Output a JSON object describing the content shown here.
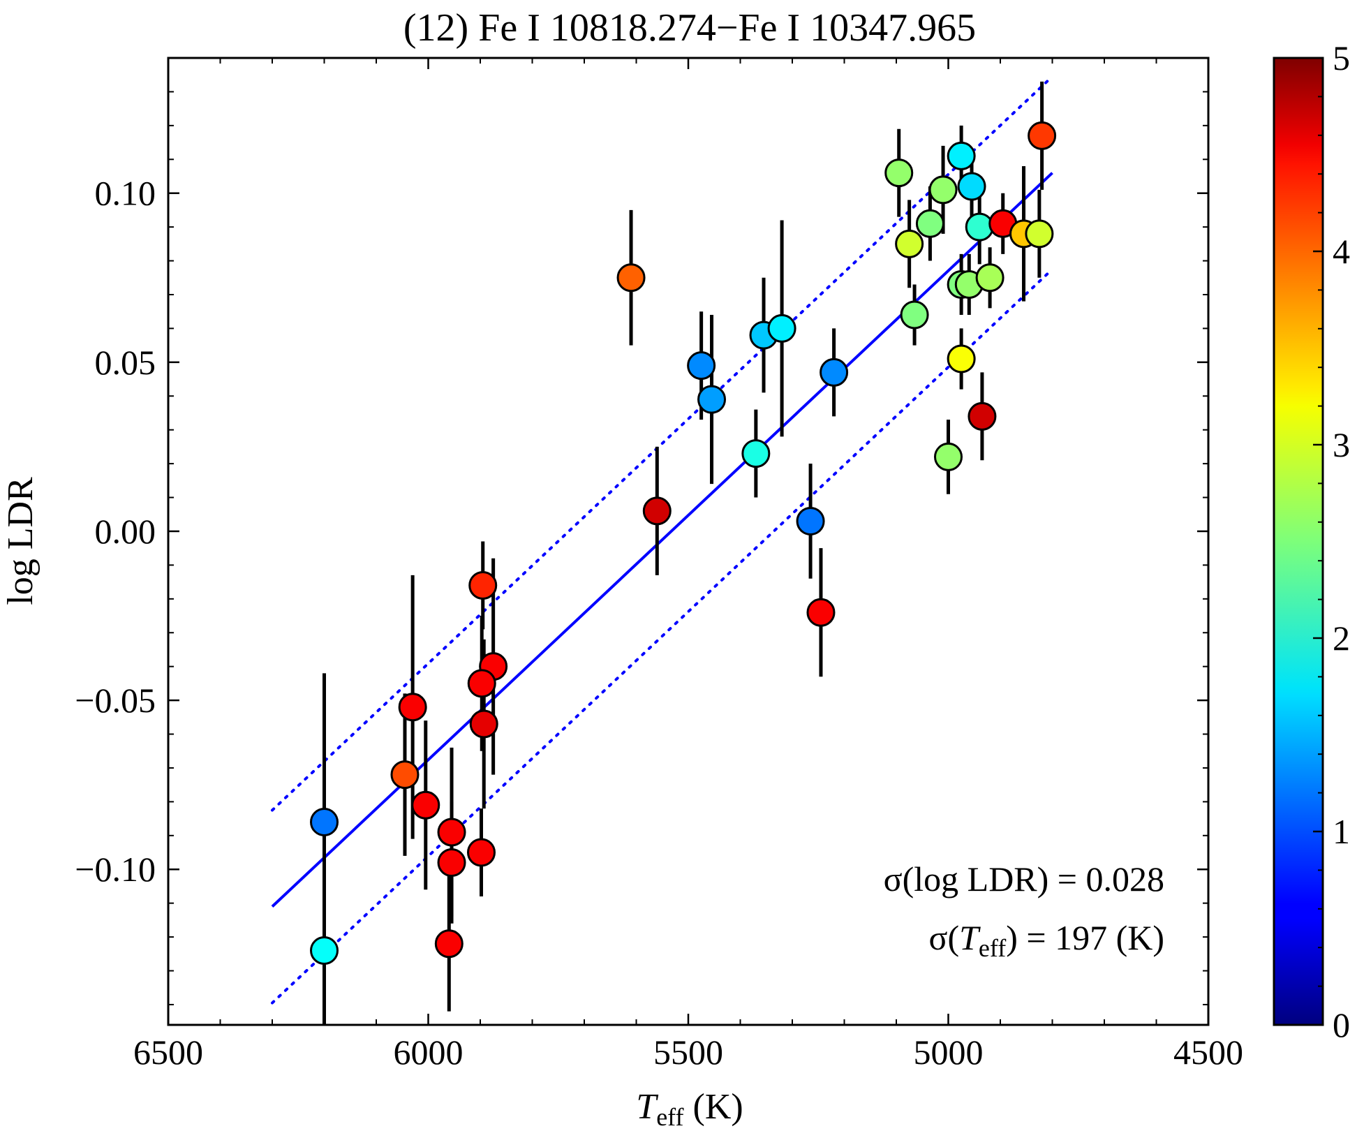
{
  "chart_data": {
    "type": "scatter",
    "title": "(12) Fe I 10818.274−Fe I 10347.965",
    "xlabel": {
      "main": "T",
      "sub": "eff",
      "suffix": " (K)"
    },
    "ylabel": "log LDR",
    "xlim": [
      6500,
      4500
    ],
    "ylim": [
      -0.146,
      0.14
    ],
    "xticks": [
      6500,
      6000,
      5500,
      5000,
      4500
    ],
    "xtick_labels": [
      "6500",
      "6000",
      "5500",
      "5000",
      "4500"
    ],
    "yticks": [
      0.1,
      0.05,
      0.0,
      -0.05,
      -0.1
    ],
    "ytick_labels": [
      "0.10",
      "0.05",
      "0.00",
      "−0.05",
      "−0.10"
    ],
    "grid": false,
    "colorbar": {
      "min": 0,
      "max": 5,
      "ticks": [
        0,
        1,
        2,
        3,
        4,
        5
      ],
      "tick_labels": [
        "0",
        "1",
        "2",
        "3",
        "4",
        "5"
      ],
      "colormap": "jet"
    },
    "fit_line": {
      "x": [
        6300,
        4800
      ],
      "y": [
        -0.111,
        0.106
      ]
    },
    "fit_band": {
      "offset": 0.0285,
      "x": [
        6300,
        4800
      ]
    },
    "annotations": [
      {
        "label": "σ(log LDR) = 0.028"
      },
      {
        "label_pre": "σ(",
        "label_main": "T",
        "label_sub": "eff",
        "label_post": ") = 197 (K)"
      }
    ],
    "points": [
      {
        "x": 6200,
        "y": -0.086,
        "err": 0.044,
        "c": 1.2
      },
      {
        "x": 6200,
        "y": -0.124,
        "err": 0.062,
        "c": 1.9
      },
      {
        "x": 6030,
        "y": -0.052,
        "err": 0.039,
        "c": 4.4
      },
      {
        "x": 6045,
        "y": -0.072,
        "err": 0.024,
        "c": 4.0
      },
      {
        "x": 6005,
        "y": -0.081,
        "err": 0.025,
        "c": 4.4
      },
      {
        "x": 5955,
        "y": -0.089,
        "err": 0.025,
        "c": 4.4
      },
      {
        "x": 5955,
        "y": -0.098,
        "err": 0.018,
        "c": 4.4
      },
      {
        "x": 5960,
        "y": -0.122,
        "err": 0.02,
        "c": 4.4
      },
      {
        "x": 5895,
        "y": -0.016,
        "err": 0.013,
        "c": 4.2
      },
      {
        "x": 5875,
        "y": -0.04,
        "err": 0.032,
        "c": 4.4
      },
      {
        "x": 5897,
        "y": -0.045,
        "err": 0.02,
        "c": 4.4
      },
      {
        "x": 5893,
        "y": -0.057,
        "err": 0.025,
        "c": 4.5
      },
      {
        "x": 5898,
        "y": -0.095,
        "err": 0.013,
        "c": 4.4
      },
      {
        "x": 5610,
        "y": 0.075,
        "err": 0.02,
        "c": 3.9
      },
      {
        "x": 5560,
        "y": 0.006,
        "err": 0.019,
        "c": 4.6
      },
      {
        "x": 5475,
        "y": 0.049,
        "err": 0.016,
        "c": 1.3
      },
      {
        "x": 5455,
        "y": 0.039,
        "err": 0.025,
        "c": 1.4
      },
      {
        "x": 5370,
        "y": 0.023,
        "err": 0.013,
        "c": 2.0
      },
      {
        "x": 5355,
        "y": 0.058,
        "err": 0.017,
        "c": 1.6
      },
      {
        "x": 5320,
        "y": 0.06,
        "err": 0.032,
        "c": 1.8
      },
      {
        "x": 5265,
        "y": 0.003,
        "err": 0.017,
        "c": 1.2
      },
      {
        "x": 5245,
        "y": -0.024,
        "err": 0.019,
        "c": 4.4
      },
      {
        "x": 5220,
        "y": 0.047,
        "err": 0.013,
        "c": 1.3
      },
      {
        "x": 5095,
        "y": 0.106,
        "err": 0.013,
        "c": 2.6
      },
      {
        "x": 5075,
        "y": 0.085,
        "err": 0.013,
        "c": 2.9
      },
      {
        "x": 5065,
        "y": 0.064,
        "err": 0.009,
        "c": 2.5
      },
      {
        "x": 5035,
        "y": 0.091,
        "err": 0.011,
        "c": 2.5
      },
      {
        "x": 5010,
        "y": 0.101,
        "err": 0.013,
        "c": 2.6
      },
      {
        "x": 5000,
        "y": 0.022,
        "err": 0.011,
        "c": 2.6
      },
      {
        "x": 4975,
        "y": 0.111,
        "err": 0.009,
        "c": 1.8
      },
      {
        "x": 4975,
        "y": 0.073,
        "err": 0.009,
        "c": 2.5
      },
      {
        "x": 4975,
        "y": 0.051,
        "err": 0.009,
        "c": 3.1
      },
      {
        "x": 4955,
        "y": 0.102,
        "err": 0.011,
        "c": 1.7
      },
      {
        "x": 4960,
        "y": 0.073,
        "err": 0.009,
        "c": 2.6
      },
      {
        "x": 4940,
        "y": 0.09,
        "err": 0.011,
        "c": 2.1
      },
      {
        "x": 4935,
        "y": 0.034,
        "err": 0.013,
        "c": 4.6
      },
      {
        "x": 4920,
        "y": 0.075,
        "err": 0.009,
        "c": 2.7
      },
      {
        "x": 4895,
        "y": 0.091,
        "err": 0.009,
        "c": 4.4
      },
      {
        "x": 4855,
        "y": 0.088,
        "err": 0.02,
        "c": 3.4
      },
      {
        "x": 4825,
        "y": 0.088,
        "err": 0.013,
        "c": 2.9
      },
      {
        "x": 4820,
        "y": 0.117,
        "err": 0.016,
        "c": 4.1
      }
    ]
  }
}
